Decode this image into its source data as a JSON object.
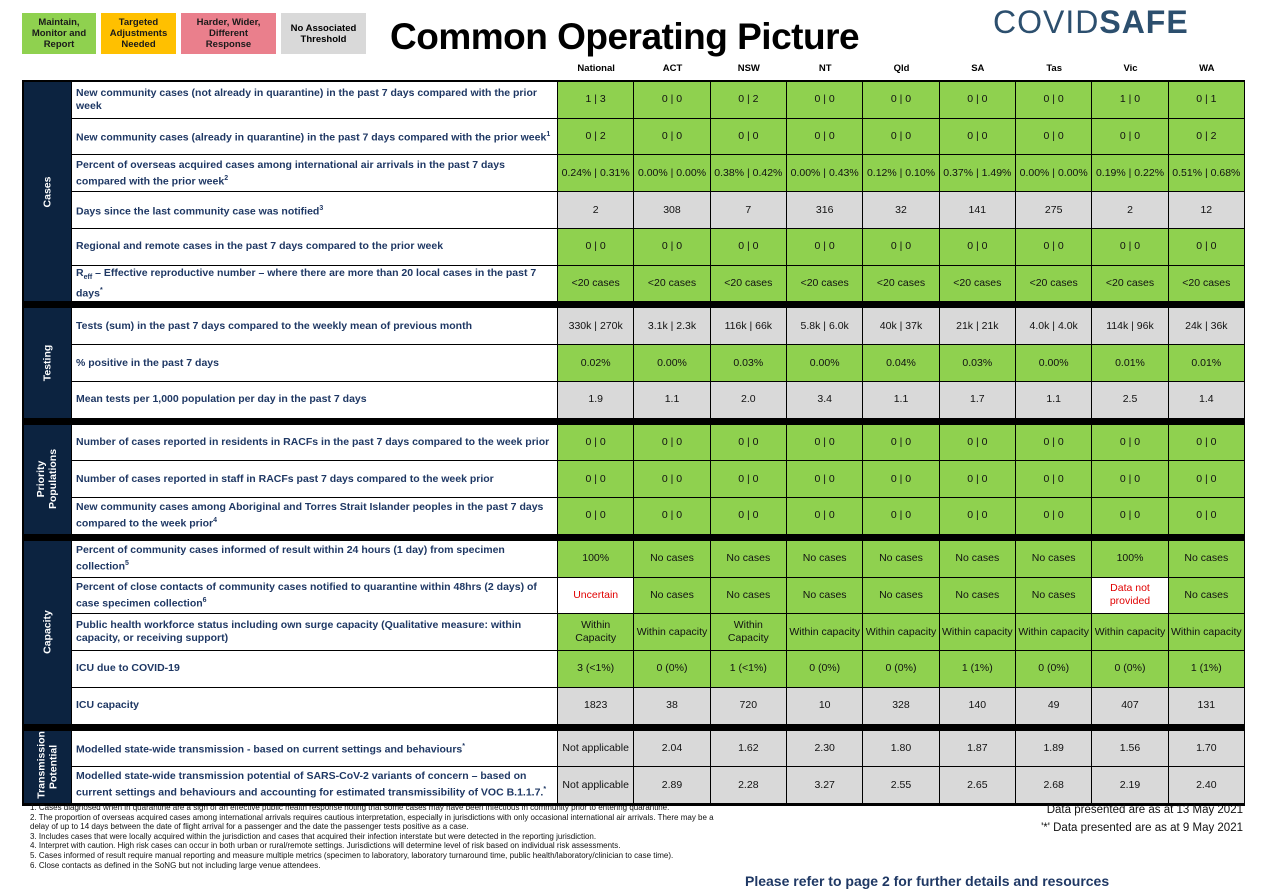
{
  "legend": [
    {
      "label": "Maintain, Monitor and Report",
      "color": "#8fd14f"
    },
    {
      "label": "Targeted Adjustments Needed",
      "color": "#ffc000"
    },
    {
      "label": "Harder, Wider, Different Response",
      "color": "#ea7f8c"
    },
    {
      "label": "No Associated Threshold",
      "color": "#d9d9d9"
    }
  ],
  "title": "Common Operating Picture",
  "logo": [
    "COVID",
    "SAFE"
  ],
  "columns": [
    "National",
    "ACT",
    "NSW",
    "NT",
    "Qld",
    "SA",
    "Tas",
    "Vic",
    "WA"
  ],
  "status_colors": {
    "green": "#8fd14f",
    "grey": "#d9d9d9",
    "white": "#ffffff"
  },
  "sections": [
    {
      "name": "Cases",
      "rows": [
        {
          "label": "New community cases (not already in quarantine) in the past 7 days compared with the prior week",
          "status": "green",
          "cells": [
            "1 | 3",
            "0 | 0",
            "0 | 2",
            "0 | 0",
            "0 | 0",
            "0 | 0",
            "0 | 0",
            "1 | 0",
            "0 | 1"
          ]
        },
        {
          "label": "New community cases (already in quarantine) in the past 7 days compared with the prior week",
          "note": "1",
          "status": "green",
          "cells": [
            "0 | 2",
            "0 | 0",
            "0 | 0",
            "0 | 0",
            "0 | 0",
            "0 | 0",
            "0 | 0",
            "0 | 0",
            "0 | 2"
          ]
        },
        {
          "label": "Percent of overseas acquired cases among international air arrivals in the past 7 days compared with the prior week",
          "note": "2",
          "status": "green",
          "cells": [
            "0.24% | 0.31%",
            "0.00% | 0.00%",
            "0.38% | 0.42%",
            "0.00% | 0.43%",
            "0.12% | 0.10%",
            "0.37% | 1.49%",
            "0.00% | 0.00%",
            "0.19% | 0.22%",
            "0.51% | 0.68%"
          ]
        },
        {
          "label": "Days since the last community case was notified",
          "note": "3",
          "status": "grey",
          "cells": [
            "2",
            "308",
            "7",
            "316",
            "32",
            "141",
            "275",
            "2",
            "12"
          ]
        },
        {
          "label": "Regional and remote cases in the past 7 days compared to the prior week",
          "status": "green",
          "cells": [
            "0 | 0",
            "0 | 0",
            "0 | 0",
            "0 | 0",
            "0 | 0",
            "0 | 0",
            "0 | 0",
            "0 | 0",
            "0 | 0"
          ]
        },
        {
          "label_prefix": "R",
          "label_sub": "eff",
          "label": " – Effective reproductive number – where there are more than 20 local cases in the past 7 days",
          "note": "*",
          "status": "green",
          "cells": [
            "<20 cases",
            "<20 cases",
            "<20 cases",
            "<20 cases",
            "<20 cases",
            "<20 cases",
            "<20 cases",
            "<20 cases",
            "<20 cases"
          ]
        }
      ]
    },
    {
      "name": "Testing",
      "rows": [
        {
          "label": "Tests (sum) in the past 7 days compared to the weekly mean of previous month",
          "status": "grey",
          "cells": [
            "330k | 270k",
            "3.1k | 2.3k",
            "116k | 66k",
            "5.8k | 6.0k",
            "40k | 37k",
            "21k | 21k",
            "4.0k | 4.0k",
            "114k | 96k",
            "24k | 36k"
          ]
        },
        {
          "label": "% positive in the past 7 days",
          "status": "green",
          "cells": [
            "0.02%",
            "0.00%",
            "0.03%",
            "0.00%",
            "0.04%",
            "0.03%",
            "0.00%",
            "0.01%",
            "0.01%"
          ]
        },
        {
          "label": "Mean tests per 1,000 population per day in the past 7 days",
          "status": "grey",
          "cells": [
            "1.9",
            "1.1",
            "2.0",
            "3.4",
            "1.1",
            "1.7",
            "1.1",
            "2.5",
            "1.4"
          ]
        }
      ]
    },
    {
      "name": "Priority Populations",
      "rows": [
        {
          "label": "Number of cases reported in residents in RACFs in the past 7 days compared to the week prior",
          "status": "green",
          "cells": [
            "0 | 0",
            "0 | 0",
            "0 | 0",
            "0 | 0",
            "0 | 0",
            "0 | 0",
            "0 | 0",
            "0 | 0",
            "0 | 0"
          ]
        },
        {
          "label": "Number of cases reported in staff in RACFs past 7 days compared to the week prior",
          "status": "green",
          "cells": [
            "0 | 0",
            "0 | 0",
            "0 | 0",
            "0 | 0",
            "0 | 0",
            "0 | 0",
            "0 | 0",
            "0 | 0",
            "0 | 0"
          ]
        },
        {
          "label": "New community cases among Aboriginal and Torres Strait Islander peoples in the past 7 days compared to the week prior",
          "note": "4",
          "status": "green",
          "cells": [
            "0 | 0",
            "0 | 0",
            "0 | 0",
            "0 | 0",
            "0 | 0",
            "0 | 0",
            "0 | 0",
            "0 | 0",
            "0 | 0"
          ]
        }
      ]
    },
    {
      "name": "Capacity",
      "rows": [
        {
          "label": "Percent of community cases informed of result within 24 hours (1 day) from specimen collection",
          "note": "5",
          "status": "green",
          "cells": [
            "100%",
            "No cases",
            "No cases",
            "No cases",
            "No cases",
            "No cases",
            "No cases",
            "100%",
            "No cases"
          ]
        },
        {
          "label": "Percent of close contacts of community cases notified to quarantine within 48hrs (2 days) of case specimen collection",
          "note": "6",
          "status": [
            "white",
            "green",
            "green",
            "green",
            "green",
            "green",
            "green",
            "white",
            "green"
          ],
          "cells": [
            "Uncertain",
            "No cases",
            "No cases",
            "No cases",
            "No cases",
            "No cases",
            "No cases",
            "Data not provided",
            "No cases"
          ]
        },
        {
          "label": "Public health workforce status including own surge capacity (Qualitative measure: within capacity, or receiving support)",
          "status": "green",
          "cells": [
            "Within Capacity",
            "Within capacity",
            "Within Capacity",
            "Within capacity",
            "Within capacity",
            "Within capacity",
            "Within capacity",
            "Within capacity",
            "Within capacity"
          ]
        },
        {
          "label": "ICU due to COVID-19",
          "status": "green",
          "cells": [
            "3 (<1%)",
            "0 (0%)",
            "1 (<1%)",
            "0 (0%)",
            "0 (0%)",
            "1 (1%)",
            "0 (0%)",
            "0 (0%)",
            "1 (1%)"
          ]
        },
        {
          "label": "ICU capacity",
          "status": "grey",
          "cells": [
            "1823",
            "38",
            "720",
            "10",
            "328",
            "140",
            "49",
            "407",
            "131"
          ]
        }
      ]
    },
    {
      "name": "Transmission Potential",
      "rows": [
        {
          "label": "Modelled state-wide transmission - based on current settings and behaviours",
          "note": "*",
          "status": "grey",
          "cells": [
            "Not applicable",
            "2.04",
            "1.62",
            "2.30",
            "1.80",
            "1.87",
            "1.89",
            "1.56",
            "1.70"
          ]
        },
        {
          "label": "Modelled state-wide transmission potential of SARS-CoV-2 variants of concern – based on current settings and behaviours and accounting for estimated transmissibility of VOC B.1.1.7.",
          "note": "*",
          "status": "grey",
          "cells": [
            "Not applicable",
            "2.89",
            "2.28",
            "3.27",
            "2.55",
            "2.65",
            "2.68",
            "2.19",
            "2.40"
          ]
        }
      ]
    }
  ],
  "footnotes": [
    "1. Cases diagnosed when in quarantine are a sign of an effective public health response noting that some cases may have been infectious in community prior to entering quarantine.",
    "2. The proportion of overseas acquired cases among international arrivals requires cautious interpretation, especially in jurisdictions with only occasional international air arrivals. There may be a delay of up to 14 days between the date of flight arrival for a passenger and the date the passenger tests positive as a case.",
    "3. Includes cases that were locally acquired within the jurisdiction and cases that acquired their infection interstate but were detected in the reporting jurisdiction.",
    "4. Interpret with caution. High risk cases can occur in both urban or rural/remote settings. Jurisdictions will determine level of risk based on individual risk assessments.",
    "5. Cases informed of result require manual reporting and measure multiple metrics (specimen to laboratory, laboratory turnaround time, public health/laboratory/clinician to case time).",
    "6. Close contacts as defined in the SoNG but not including large venue attendees."
  ],
  "data_notes": [
    "Data presented are as at 13 May 2021",
    "'*' Data presented are as at 9 May 2021"
  ],
  "footer": "Please refer to page 2 for further details and resources"
}
